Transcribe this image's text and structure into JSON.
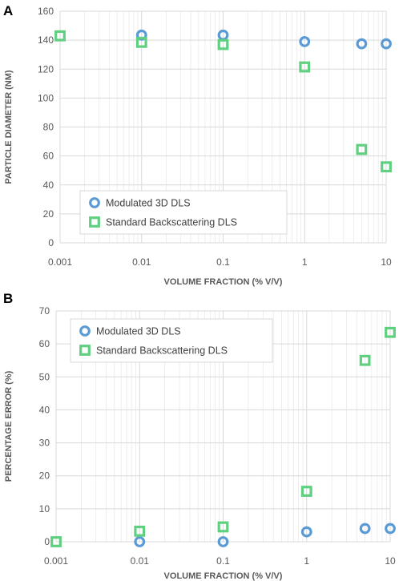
{
  "panels": [
    {
      "letter": "A",
      "chart_data": {
        "type": "scatter",
        "xscale": "log",
        "xlim": [
          0.001,
          10
        ],
        "ylim": [
          0,
          160
        ],
        "xticks": [
          0.001,
          0.01,
          0.1,
          1,
          10
        ],
        "xtick_labels": [
          "0.001",
          "0.01",
          "0.1",
          "1",
          "10"
        ],
        "yticks": [
          0,
          20,
          40,
          60,
          80,
          100,
          120,
          140,
          160
        ],
        "ytick_labels": [
          "0",
          "20",
          "40",
          "60",
          "80",
          "100",
          "120",
          "140",
          "160"
        ],
        "xlabel": "VOLUME FRACTION (% V/V)",
        "ylabel": "PARTICLE DIAMETER (NM)",
        "grid": true,
        "legend_position": "bottom-left",
        "series": [
          {
            "name": "Modulated 3D DLS",
            "marker": "circle",
            "color": "#5b9bd5",
            "x": [
              0.01,
              0.1,
              1,
              5,
              10
            ],
            "y": [
              143.5,
              143.5,
              139,
              137.5,
              137.5
            ]
          },
          {
            "name": "Standard Backscattering DLS",
            "marker": "square",
            "color": "#5fcf80",
            "x": [
              0.001,
              0.01,
              0.1,
              1,
              5,
              10
            ],
            "y": [
              143,
              138.5,
              137,
              121.5,
              64.5,
              52.5
            ]
          }
        ]
      }
    },
    {
      "letter": "B",
      "chart_data": {
        "type": "scatter",
        "xscale": "log",
        "xlim": [
          0.001,
          10
        ],
        "ylim": [
          0,
          70
        ],
        "xticks": [
          0.001,
          0.01,
          0.1,
          1,
          10
        ],
        "xtick_labels": [
          "0.001",
          "0.01",
          "0.1",
          "1",
          "10"
        ],
        "yticks": [
          0,
          10,
          20,
          30,
          40,
          50,
          60,
          70
        ],
        "ytick_labels": [
          "0",
          "10",
          "20",
          "30",
          "40",
          "50",
          "60",
          "70"
        ],
        "xlabel": "VOLUME FRACTION (% V/V)",
        "ylabel": "PERCENTAGE ERROR (%)",
        "grid": true,
        "legend_position": "top-left",
        "series": [
          {
            "name": "Modulated 3D DLS",
            "marker": "circle",
            "color": "#5b9bd5",
            "x": [
              0.01,
              0.1,
              1,
              5,
              10
            ],
            "y": [
              0,
              0,
              3,
              4,
              4
            ]
          },
          {
            "name": "Standard Backscattering DLS",
            "marker": "square",
            "color": "#5fcf80",
            "x": [
              0.001,
              0.01,
              0.1,
              1,
              5,
              10
            ],
            "y": [
              0,
              3.2,
              4.5,
              15.3,
              55,
              63.5
            ]
          }
        ]
      }
    }
  ]
}
